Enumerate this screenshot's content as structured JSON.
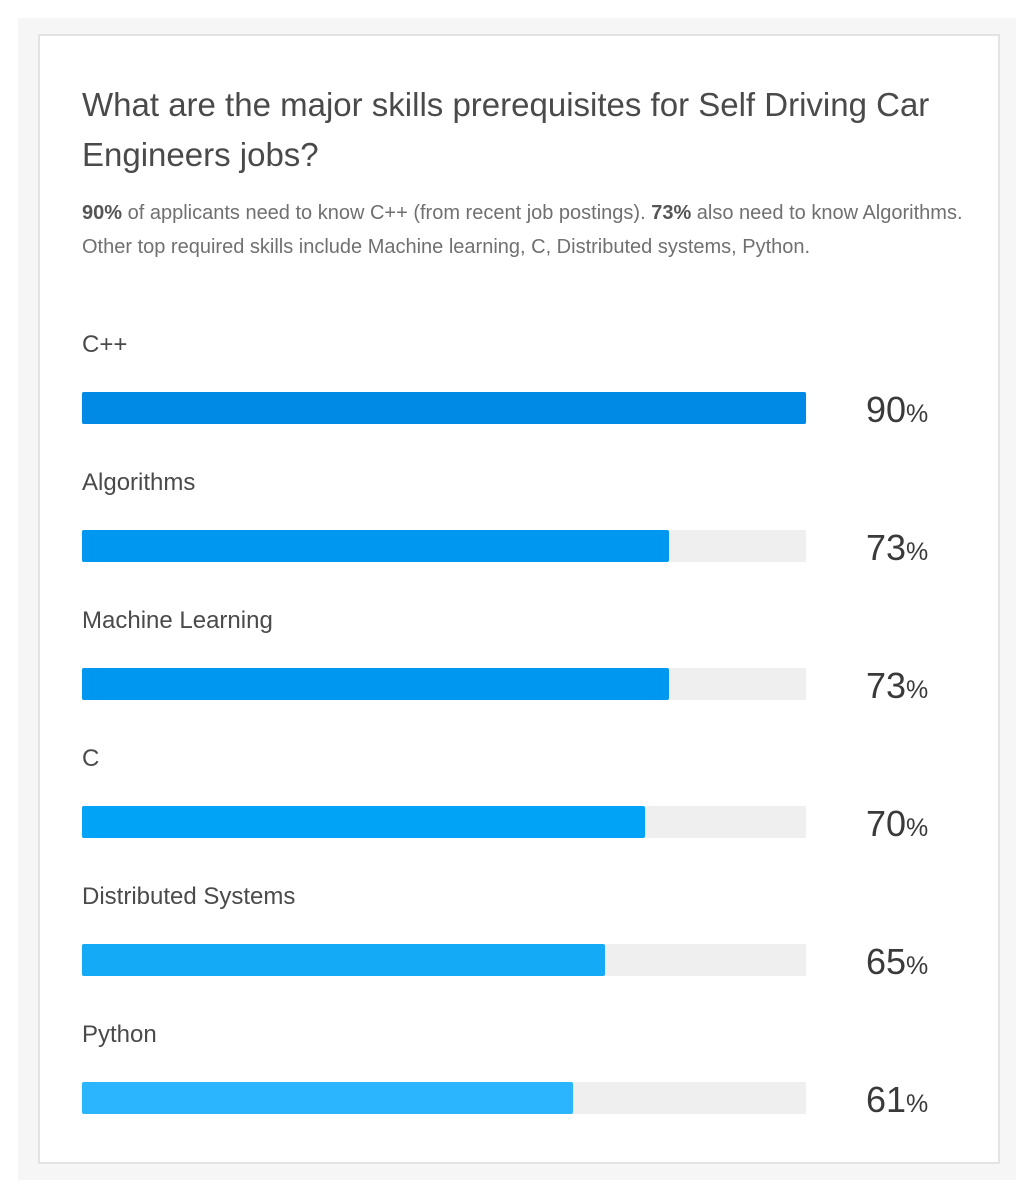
{
  "title": "What are the major skills prerequisites for Self Driving Car Engineers jobs?",
  "description": {
    "stat1": "90%",
    "text1": " of applicants need to know C++ (from recent job postings). ",
    "stat2": "73%",
    "text2": " also need to know Algorithms. Other top required skills include Machine learning, C, Distributed systems, Python."
  },
  "chart_data": {
    "type": "bar",
    "orientation": "horizontal",
    "categories": [
      "C++",
      "Algorithms",
      "Machine Learning",
      "C",
      "Distributed Systems",
      "Python"
    ],
    "values": [
      90,
      73,
      73,
      70,
      65,
      61
    ],
    "value_labels": [
      "90",
      "73",
      "73",
      "70",
      "65",
      "61"
    ],
    "unit": "%",
    "xlim": [
      0,
      90
    ],
    "colors": [
      "#008ae6",
      "#0097f0",
      "#0097f0",
      "#00a3f6",
      "#14aaf5",
      "#2bb5ff"
    ],
    "track_color": "#efefef"
  }
}
